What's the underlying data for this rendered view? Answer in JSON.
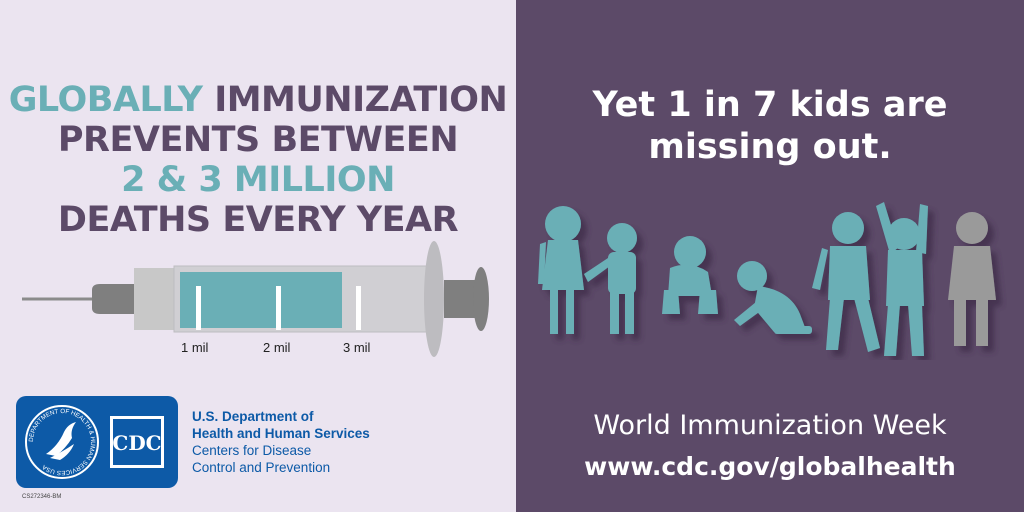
{
  "colors": {
    "left_bg": "#ebe4f0",
    "right_bg": "#5c4a68",
    "teal": "#6aafb6",
    "purple_text": "#5c4a68",
    "gray_kid": "#9a9a9a",
    "cdc_blue": "#0d5aa7"
  },
  "headline": {
    "line1_teal": "GLOBALLY",
    "line1_rest": "IMMUNIZATION",
    "line2": "PREVENTS BETWEEN",
    "line3": "2 & 3 MILLION",
    "line4": "DEATHS EVERY YEAR"
  },
  "syringe": {
    "fill_fraction": 0.67,
    "ticks": [
      "1 mil",
      "2 mil",
      "3 mil"
    ]
  },
  "logo": {
    "seal_text": "DEPARTMENT OF HEALTH & HUMAN SERVICES USA",
    "cdc_mark": "CDC",
    "code": "CS272346-BM"
  },
  "agency": {
    "line1": "U.S. Department of",
    "line2": "Health and Human Services",
    "line3": "Centers for Disease",
    "line4": "Control and Prevention"
  },
  "tagline": {
    "line1": "Yet 1 in 7 kids are",
    "line2": "missing out."
  },
  "kids": {
    "total": 7,
    "missing": 1
  },
  "footer": {
    "event": "World Immunization Week",
    "url": "www.cdc.gov/globalhealth"
  }
}
